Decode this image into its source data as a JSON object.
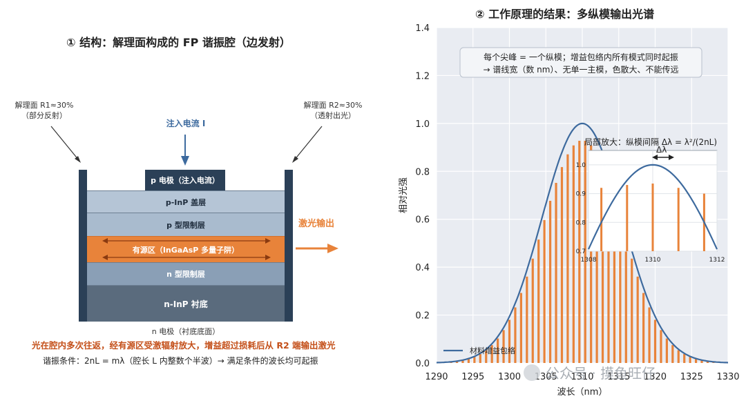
{
  "left": {
    "title": "① 结构：解理面构成的 FP 谐振腔（边发射）",
    "facet_left_line1": "解理面 R1≈30%",
    "facet_left_line2": "（部分反射）",
    "facet_right_line1": "解理面 R2≈30%",
    "facet_right_line2": "（透射出光）",
    "current_label": "注入电流 I",
    "p_electrode": "p 电极（注入电流）",
    "layers": [
      "p-InP 盖层",
      "p 型限制层",
      "有源区（InGaAsP 多量子阱）",
      "n 型限制层",
      "n-InP 衬底"
    ],
    "n_electrode": "n 电极（衬底底面）",
    "output_label": "激光输出",
    "note_red": "光在腔内多次往返，经有源区受激辐射放大，增益超过损耗后从 R2 端输出激光",
    "note_dark": "谐振条件：2nL = mλ（腔长 L 内整数个半波）→ 满足条件的波长均可起振"
  },
  "right": {
    "title": "② 工作原理的结果：多纵模输出光谱",
    "annotation_line1": "每个尖峰 = 一个纵模；增益包络内所有模式同时起振",
    "annotation_line2": "→ 谱线宽（数 nm）、无单一主模，色散大、不能传远",
    "inset_title": "局部放大：纵模间隔 Δλ = λ²/(2nL)",
    "inset_delta": "Δλ",
    "legend_label": "材料增益包络",
    "watermark": "公众号 · 摸鱼旺仔"
  },
  "colors": {
    "accent_orange": "#e8833a",
    "envelope_blue": "#3d6a9e",
    "red_text": "#c4501a",
    "facet_dark": "#2b4057"
  },
  "chart_data": [
    {
      "type": "bar",
      "title": "② 工作原理的结果：多纵模输出光谱",
      "xlabel": "波长（nm）",
      "ylabel": "相对光强",
      "xlim": [
        1290,
        1330
      ],
      "ylim": [
        0,
        1.4
      ],
      "xticks": [
        1290,
        1295,
        1300,
        1305,
        1310,
        1315,
        1320,
        1325,
        1330
      ],
      "yticks": [
        0.0,
        0.2,
        0.4,
        0.6,
        0.8,
        1.0,
        1.2,
        1.4
      ],
      "grid": true,
      "mode_peaks": {
        "x_start": 1292.0,
        "x_end": 1328.0,
        "spacing_nm": 0.8,
        "center_nm": 1310,
        "fwhm_nm": 13,
        "peak_relative": 0.93
      },
      "envelope": {
        "name": "材料增益包络",
        "center_nm": 1310,
        "fwhm_nm": 13,
        "peak": 1.0
      },
      "legend": "bottom-left"
    },
    {
      "type": "bar",
      "title": "局部放大：纵模间隔 Δλ = λ²/(2nL)",
      "xlim": [
        1308,
        1312
      ],
      "ylim": [
        0.7,
        1.05
      ],
      "xticks": [
        1308,
        1310,
        1312
      ],
      "yticks": [
        0.7,
        0.8,
        0.9,
        1.0
      ],
      "x": [
        1308.4,
        1309.2,
        1310.0,
        1310.8,
        1311.6
      ],
      "values": [
        0.92,
        0.93,
        0.935,
        0.92,
        0.9
      ],
      "envelope_peak": 1.0
    }
  ]
}
